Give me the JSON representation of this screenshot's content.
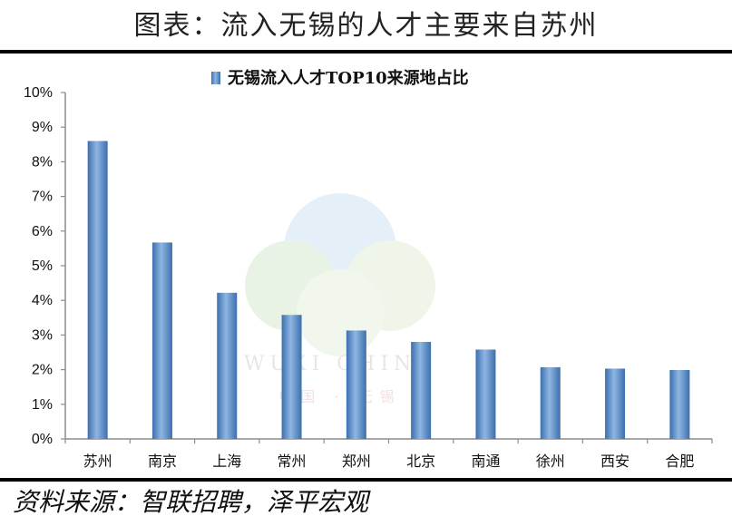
{
  "header": {
    "title": "图表：流入无锡的人才主要来自苏州"
  },
  "source": {
    "text": "资料来源：智联招聘，泽平宏观"
  },
  "watermark": {
    "main": "WUXI CHINA",
    "sub": "中国 · 无锡"
  },
  "colors": {
    "bar": "#4a7fc1",
    "bar_light": "#9ec0e6",
    "axis": "#8c8c8c",
    "rule": "#000000"
  },
  "chart_data": {
    "type": "bar",
    "title": "",
    "legend": [
      "无锡流入人才TOP10来源地占比"
    ],
    "legend_placement": "top",
    "categories": [
      "苏州",
      "南京",
      "上海",
      "常州",
      "郑州",
      "北京",
      "南通",
      "徐州",
      "西安",
      "合肥"
    ],
    "series": [
      {
        "name": "无锡流入人才TOP10来源地占比",
        "values": [
          8.6,
          5.67,
          4.22,
          3.58,
          3.13,
          2.8,
          2.58,
          2.07,
          2.03,
          1.99
        ]
      }
    ],
    "y_ticks": [
      "0%",
      "1%",
      "2%",
      "3%",
      "4%",
      "5%",
      "6%",
      "7%",
      "8%",
      "9%",
      "10%"
    ],
    "ylim": [
      0,
      10
    ],
    "y_unit": "%",
    "grid": false
  }
}
